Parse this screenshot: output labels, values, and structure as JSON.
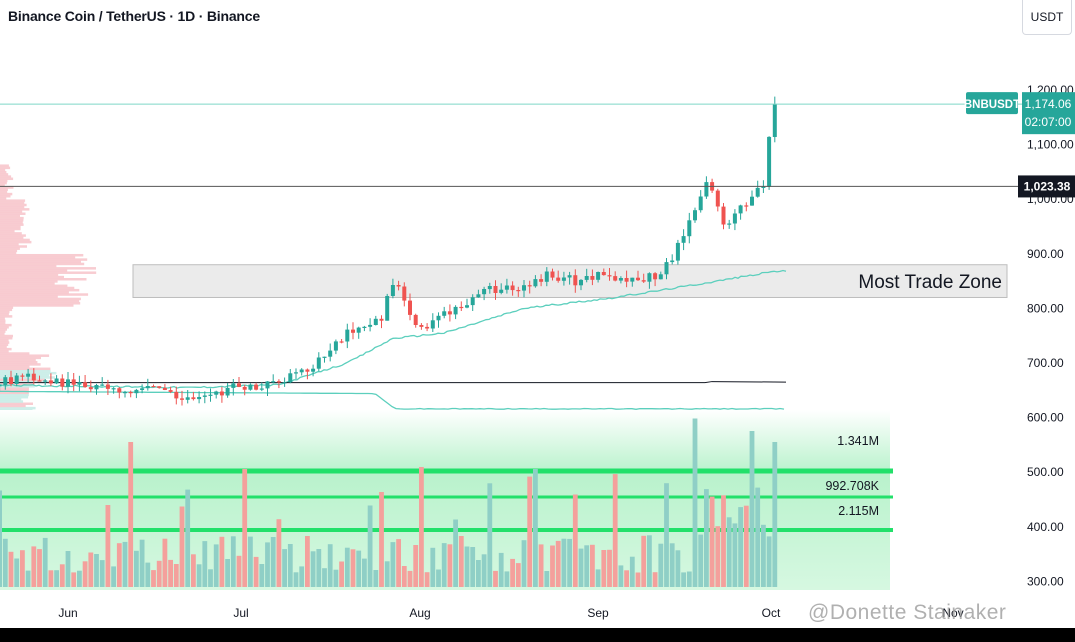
{
  "header": {
    "title": "Binance Coin / TetherUS · 1D · Binance",
    "currency": "USDT"
  },
  "watermark": "@Donette Stainaker",
  "colors": {
    "up": "#26a69a",
    "down": "#ef5350",
    "vol_up": "#8fcfc6",
    "vol_down": "#f4a09c",
    "accent_green": "#22e06a",
    "price_tag": "#26a69a",
    "ref_tag": "#131722",
    "zone_fill": "#ebebeb"
  },
  "chart_data": {
    "type": "candlestick",
    "title": "Binance Coin / TetherUS · 1D · Binance",
    "y_axis": {
      "ticks": [
        300,
        400,
        500,
        600,
        700,
        800,
        900,
        1000,
        1100,
        1200
      ],
      "tick_labels": [
        "300.00",
        "400.00",
        "500.00",
        "600.00",
        "700.00",
        "800.00",
        "900.00",
        "1,000.00",
        "1,100.00",
        "1,200.00"
      ],
      "range": [
        280,
        1300
      ]
    },
    "x_axis": {
      "labels": [
        "Jun",
        "Jul",
        "Aug",
        "Sep",
        "Oct",
        "Nov"
      ],
      "start": "2025-05-16",
      "end": "2025-11-04"
    },
    "price_label": {
      "symbol": "BNBUSDT",
      "value": "1,174.06",
      "countdown": "02:07:00",
      "price": 1174.06
    },
    "reference_line": {
      "label": "1,023.38",
      "price": 1023.38
    },
    "zone": {
      "label": "Most Trade Zone",
      "low": 820,
      "high": 880
    },
    "volume_labels": [
      "1.341M",
      "992.708K",
      "2.115M"
    ],
    "ohlc_points": [
      {
        "date": "2025-05-16",
        "close": 655
      },
      {
        "date": "2025-05-25",
        "close": 675
      },
      {
        "date": "2025-06-05",
        "close": 655
      },
      {
        "date": "2025-06-15",
        "close": 652
      },
      {
        "date": "2025-06-22",
        "close": 630
      },
      {
        "date": "2025-06-30",
        "close": 655
      },
      {
        "date": "2025-07-08",
        "close": 665
      },
      {
        "date": "2025-07-14",
        "close": 690
      },
      {
        "date": "2025-07-20",
        "close": 760
      },
      {
        "date": "2025-07-26",
        "close": 785
      },
      {
        "date": "2025-07-28",
        "close": 850
      },
      {
        "date": "2025-08-02",
        "close": 760
      },
      {
        "date": "2025-08-08",
        "close": 800
      },
      {
        "date": "2025-08-14",
        "close": 835
      },
      {
        "date": "2025-08-19",
        "close": 840
      },
      {
        "date": "2025-08-24",
        "close": 860
      },
      {
        "date": "2025-08-29",
        "close": 850
      },
      {
        "date": "2025-09-03",
        "close": 860
      },
      {
        "date": "2025-09-08",
        "close": 850
      },
      {
        "date": "2025-09-13",
        "close": 865
      },
      {
        "date": "2025-09-18",
        "close": 955
      },
      {
        "date": "2025-09-21",
        "close": 1030
      },
      {
        "date": "2025-09-24",
        "close": 960
      },
      {
        "date": "2025-09-27",
        "close": 975
      },
      {
        "date": "2025-10-01",
        "close": 1030
      },
      {
        "date": "2025-10-02",
        "close": 1100
      },
      {
        "date": "2025-10-03",
        "close": 1174
      }
    ],
    "vwap_line": [
      {
        "date": "2025-05-16",
        "value": 660
      },
      {
        "date": "2025-06-22",
        "value": 655
      },
      {
        "date": "2025-07-08",
        "value": 660
      },
      {
        "date": "2025-07-20",
        "value": 700
      },
      {
        "date": "2025-07-28",
        "value": 745
      },
      {
        "date": "2025-08-06",
        "value": 755
      },
      {
        "date": "2025-08-20",
        "value": 800
      },
      {
        "date": "2025-09-05",
        "value": 820
      },
      {
        "date": "2025-09-20",
        "value": 845
      },
      {
        "date": "2025-10-03",
        "value": 868
      }
    ]
  }
}
